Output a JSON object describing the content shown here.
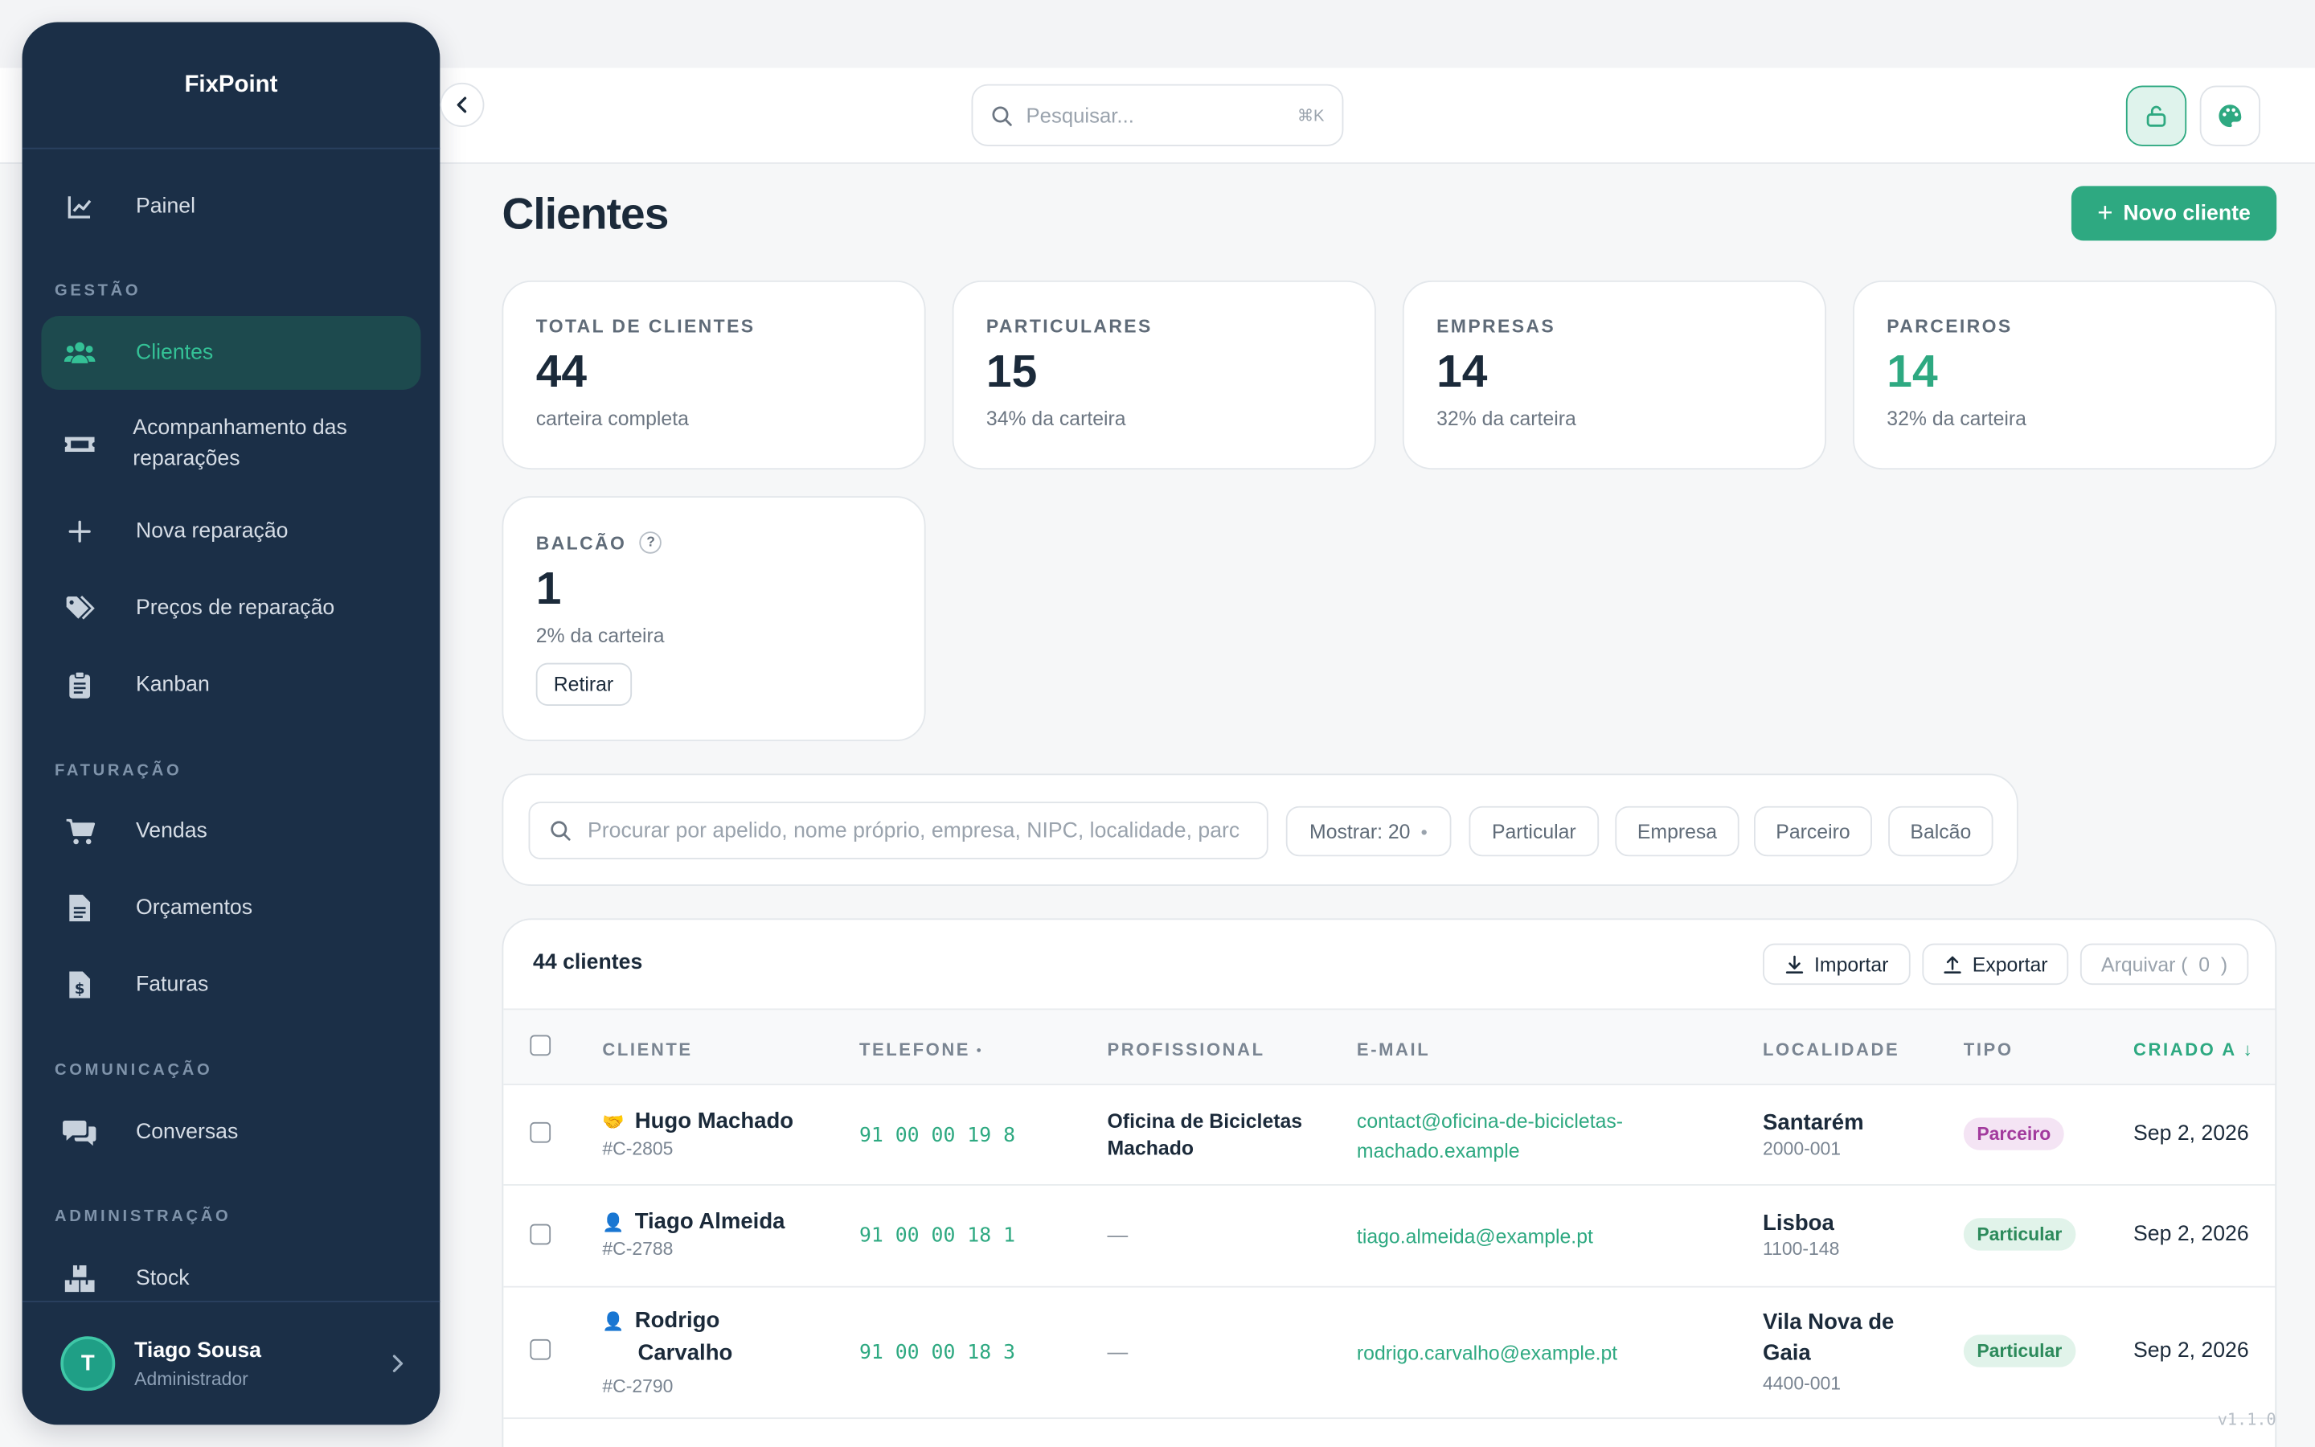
{
  "app": {
    "name": "FixPoint",
    "version": "v1.1.0"
  },
  "topbar": {
    "search_placeholder": "Pesquisar...",
    "shortcut": "⌘K"
  },
  "sidebar": {
    "items": [
      {
        "label": "Painel",
        "icon": "chart-line-icon"
      },
      {
        "label": "Clientes",
        "icon": "users-icon",
        "active": true
      },
      {
        "label": "Acompanhamento das reparações",
        "icon": "ticket-icon"
      },
      {
        "label": "Nova reparação",
        "icon": "plus-icon"
      },
      {
        "label": "Preços de reparação",
        "icon": "tags-icon"
      },
      {
        "label": "Kanban",
        "icon": "clipboard-icon"
      },
      {
        "label": "Vendas",
        "icon": "cart-icon"
      },
      {
        "label": "Orçamentos",
        "icon": "document-icon"
      },
      {
        "label": "Faturas",
        "icon": "invoice-icon"
      },
      {
        "label": "Conversas",
        "icon": "chat-icon"
      },
      {
        "label": "Stock",
        "icon": "boxes-icon"
      }
    ],
    "sections": {
      "gestao": "GESTÃO",
      "faturacao": "FATURAÇÃO",
      "comunicacao": "COMUNICAÇÃO",
      "administracao": "ADMINISTRAÇÃO"
    },
    "user": {
      "initial": "T",
      "name": "Tiago Sousa",
      "role": "Administrador"
    }
  },
  "page": {
    "title": "Clientes",
    "new_button": "Novo cliente"
  },
  "stats": [
    {
      "label": "TOTAL DE CLIENTES",
      "value": "44",
      "sub": "carteira completa"
    },
    {
      "label": "PARTICULARES",
      "value": "15",
      "sub": "34% da carteira"
    },
    {
      "label": "EMPRESAS",
      "value": "14",
      "sub": "32% da carteira"
    },
    {
      "label": "PARCEIROS",
      "value": "14",
      "sub": "32% da carteira"
    },
    {
      "label": "BALCÃO",
      "value": "1",
      "sub": "2% da carteira",
      "help": "?",
      "action": "Retirar"
    }
  ],
  "filters": {
    "search_placeholder": "Procurar por apelido, nome próprio, empresa, NIPC, localidade, parc",
    "show": "Mostrar: 20",
    "chips": [
      "Particular",
      "Empresa",
      "Parceiro",
      "Balcão"
    ]
  },
  "table": {
    "count": "44 clientes",
    "actions": {
      "import": "Importar",
      "export": "Exportar",
      "archive": "Arquivar (  0  )"
    },
    "columns": {
      "cliente": "CLIENTE",
      "telefone": "TELEFONE",
      "profissional": "PROFISSIONAL",
      "email": "E-MAIL",
      "localidade": "LOCALIDADE",
      "tipo": "TIPO",
      "criado": "CRIADO A ↓"
    },
    "rows": [
      {
        "icon": "🤝",
        "name_1": "Hugo Machado",
        "name_2": "",
        "id": "#C-2805",
        "phone": "91 00 00 19 8",
        "prof_1": "Oficina de Bicicletas",
        "prof_2": "Machado",
        "email_1": "contact@oficina-de-bicicletas-",
        "email_2": "machado.example",
        "loc_1": "Santarém",
        "loc_2": "",
        "zip": "2000-001",
        "type": "Parceiro",
        "created": "Sep 2, 2026"
      },
      {
        "icon": "👤",
        "name_1": "Tiago Almeida",
        "name_2": "",
        "id": "#C-2788",
        "phone": "91 00 00 18 1",
        "prof_1": "—",
        "prof_2": "",
        "email_1": "tiago.almeida@example.pt",
        "email_2": "",
        "loc_1": "Lisboa",
        "loc_2": "",
        "zip": "1100-148",
        "type": "Particular",
        "created": "Sep 2, 2026"
      },
      {
        "icon": "👤",
        "name_1": "Rodrigo",
        "name_2": "Carvalho",
        "id": "#C-2790",
        "phone": "91 00 00 18 3",
        "prof_1": "—",
        "prof_2": "",
        "email_1": "rodrigo.carvalho@example.pt",
        "email_2": "",
        "loc_1": "Vila Nova de",
        "loc_2": "Gaia",
        "zip": "4400-001",
        "type": "Particular",
        "created": "Sep 2, 2026"
      }
    ]
  },
  "colors": {
    "accent": "#2ea981",
    "sidebar": "#1b2f47",
    "parceiro": "#a23a9d",
    "particular": "#2c8a5b"
  }
}
